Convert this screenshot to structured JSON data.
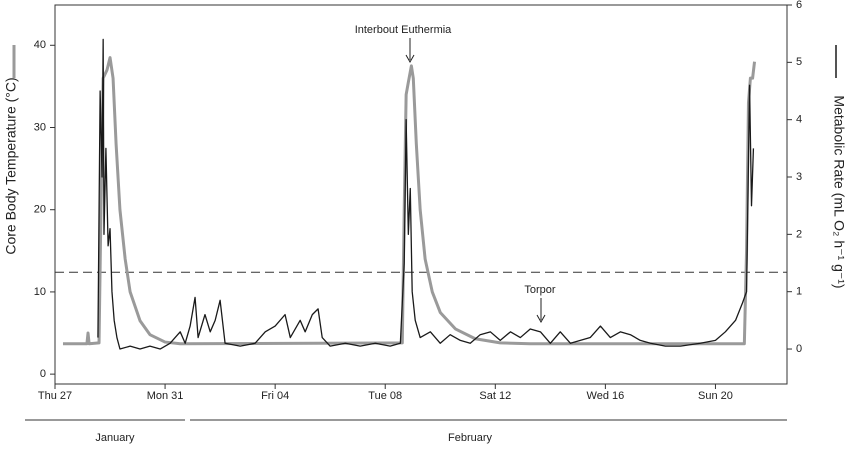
{
  "chart_data": {
    "type": "line",
    "y_label": "Core Body Temperature (°C)",
    "y2_label": "Metabolic Rate (mL O₂ h⁻¹ g⁻¹)",
    "annotations": [
      "Interbout Euthermia",
      "Torpor"
    ],
    "months": [
      "January",
      "February"
    ],
    "xlim": [
      0,
      26.6
    ],
    "xticks": [
      {
        "value": 0,
        "label": "Thu 27"
      },
      {
        "value": 4,
        "label": "Mon 31"
      },
      {
        "value": 8,
        "label": "Fri 04"
      },
      {
        "value": 12,
        "label": "Tue 08"
      },
      {
        "value": 16,
        "label": "Sat 12"
      },
      {
        "value": 20,
        "label": "Wed 16"
      },
      {
        "value": 24,
        "label": "Sun 20"
      }
    ],
    "ylim": [
      -1.2,
      44.9
    ],
    "yticks": [
      0,
      10,
      20,
      30,
      40
    ],
    "y2lim": [
      -0.61,
      6
    ],
    "y2ticks": [
      0,
      1,
      2,
      3,
      4,
      5,
      6
    ],
    "threshold": 12.4,
    "series": [
      {
        "color": "#9a9a9a",
        "axis": "y",
        "x": [
          0.29,
          1.16,
          1.2,
          1.24,
          1.6,
          1.67,
          1.75,
          1.89,
          2.0,
          2.11,
          2.22,
          2.36,
          2.55,
          2.73,
          3.09,
          3.45,
          4.0,
          4.55,
          12.62,
          12.69,
          12.76,
          12.84,
          12.95,
          13.02,
          13.13,
          13.27,
          13.45,
          13.71,
          14.0,
          14.55,
          15.27,
          16.18,
          17.27,
          25.05,
          25.13,
          25.2,
          25.27,
          25.35,
          25.42
        ],
        "values": [
          3.7,
          3.7,
          5.0,
          3.7,
          3.8,
          20,
          36,
          37,
          38.5,
          36,
          28,
          20,
          14,
          10,
          6.5,
          4.8,
          3.9,
          3.7,
          3.8,
          20,
          34,
          35.5,
          37.5,
          36,
          28,
          20,
          14,
          10,
          7.5,
          5.5,
          4.3,
          3.8,
          3.7,
          3.7,
          15,
          33,
          36,
          36,
          38
        ]
      },
      {
        "color": "#1a1a1a",
        "axis": "y2",
        "x": [
          1.56,
          1.64,
          1.71,
          1.75,
          1.78,
          1.85,
          1.93,
          2.0,
          2.07,
          2.15,
          2.25,
          2.36,
          2.73,
          3.09,
          3.45,
          3.82,
          4.18,
          4.55,
          4.73,
          4.91,
          5.09,
          5.2,
          5.45,
          5.64,
          5.82,
          6.0,
          6.18,
          6.73,
          7.27,
          7.64,
          8.0,
          8.36,
          8.55,
          8.91,
          9.09,
          9.35,
          9.56,
          9.71,
          10.0,
          10.55,
          11.09,
          11.64,
          12.18,
          12.55,
          12.69,
          12.76,
          12.84,
          12.91,
          12.98,
          13.09,
          13.27,
          13.64,
          14.0,
          14.36,
          14.73,
          15.09,
          15.45,
          15.82,
          16.18,
          16.55,
          16.91,
          17.27,
          17.64,
          18.0,
          18.36,
          18.73,
          19.09,
          19.45,
          19.82,
          20.18,
          20.55,
          20.91,
          21.27,
          21.64,
          22.18,
          22.73,
          23.45,
          24.0,
          24.36,
          24.73,
          24.98,
          25.13,
          25.24,
          25.31,
          25.38
        ],
        "values": [
          0.2,
          4.5,
          3.0,
          5.4,
          2.0,
          3.5,
          1.8,
          2.1,
          1.0,
          0.5,
          0.2,
          0.0,
          0.05,
          0.0,
          0.05,
          0.0,
          0.1,
          0.3,
          0.1,
          0.4,
          0.9,
          0.2,
          0.6,
          0.3,
          0.5,
          0.85,
          0.1,
          0.05,
          0.1,
          0.3,
          0.4,
          0.6,
          0.2,
          0.5,
          0.3,
          0.6,
          0.7,
          0.2,
          0.05,
          0.1,
          0.05,
          0.1,
          0.05,
          0.1,
          1.5,
          4.0,
          2.0,
          2.8,
          1.0,
          0.5,
          0.2,
          0.3,
          0.1,
          0.25,
          0.15,
          0.1,
          0.25,
          0.3,
          0.15,
          0.3,
          0.2,
          0.35,
          0.3,
          0.1,
          0.3,
          0.1,
          0.15,
          0.2,
          0.4,
          0.2,
          0.3,
          0.25,
          0.15,
          0.1,
          0.05,
          0.05,
          0.1,
          0.15,
          0.3,
          0.5,
          0.8,
          1.0,
          4.6,
          2.5,
          3.5
        ]
      }
    ]
  }
}
